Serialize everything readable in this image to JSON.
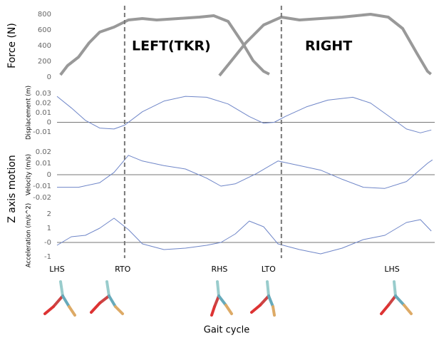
{
  "x_label": "Gait cycle",
  "group_label": "Z axis motion",
  "annotations": [
    "LEFT(TKR)",
    "RIGHT"
  ],
  "dividers": [
    17.9,
    59.4
  ],
  "events": [
    {
      "label": "LHS",
      "x": 0
    },
    {
      "label": "RTO",
      "x": 17.4
    },
    {
      "label": "RHS",
      "x": 43
    },
    {
      "label": "LTO",
      "x": 56
    },
    {
      "label": "LHS",
      "x": 88.7
    }
  ],
  "chart_data": [
    {
      "type": "line",
      "ylabel": "Force (N)",
      "ylim": [
        0,
        800
      ],
      "yticks": [
        0,
        200,
        400,
        600,
        800
      ],
      "xlim": [
        0,
        100
      ],
      "series": [
        {
          "color": "#999999",
          "x": [
            0.9,
            2.8,
            5.7,
            8.5,
            11.3,
            15.1,
            18.9,
            22.6,
            26.4,
            32.1,
            37.7,
            41.5,
            45.3,
            49.1,
            51.9,
            54.7,
            56.2
          ],
          "values": [
            27,
            145,
            255,
            436,
            573,
            636,
            727,
            745,
            727,
            745,
            764,
            782,
            709,
            436,
            209,
            73,
            36
          ]
        },
        {
          "color": "#999999",
          "x": [
            43,
            46.2,
            50,
            54.7,
            59.4,
            64.2,
            69.8,
            75.5,
            83,
            87.7,
            91.5,
            95.3,
            98.1,
            99
          ],
          "values": [
            18,
            209,
            436,
            664,
            764,
            727,
            745,
            764,
            800,
            764,
            618,
            300,
            73,
            36
          ]
        }
      ]
    },
    {
      "type": "line",
      "ylabel": "Displacement (m)",
      "ylim": [
        -0.012,
        0.032
      ],
      "yticks": [
        0.03,
        0.02,
        0.01,
        0,
        -0.01
      ],
      "xlim": [
        0,
        100
      ],
      "series": [
        {
          "color": "#6f86c8",
          "x": [
            0,
            3.8,
            7.5,
            11.3,
            15.1,
            17.9,
            22.6,
            28.3,
            34,
            39.6,
            45.3,
            50.9,
            54.7,
            57.5,
            60.4,
            66,
            71.7,
            78.3,
            83,
            88.7,
            92.5,
            96.2,
            99.1
          ],
          "values": [
            0.027,
            0.015,
            0.002,
            -0.006,
            -0.007,
            -0.003,
            0.011,
            0.022,
            0.027,
            0.026,
            0.019,
            0.006,
            -0.001,
            0,
            0.006,
            0.016,
            0.023,
            0.026,
            0.02,
            0.004,
            -0.007,
            -0.011,
            -0.008
          ]
        }
      ]
    },
    {
      "type": "line",
      "ylabel": "Velocity (m/s)",
      "ylim": [
        -0.02,
        0.02
      ],
      "yticks": [
        0.02,
        0.01,
        0,
        -0.01,
        -0.02
      ],
      "xlim": [
        0,
        100
      ],
      "series": [
        {
          "color": "#6f86c8",
          "x": [
            0,
            5.7,
            11.3,
            15.1,
            18.9,
            22.6,
            28.3,
            34,
            39.6,
            43.4,
            47.2,
            52.8,
            58.5,
            64.2,
            69.8,
            75.5,
            81.1,
            86.8,
            92.5,
            98.1,
            99.4
          ],
          "values": [
            -0.011,
            -0.011,
            -0.007,
            0.002,
            0.017,
            0.012,
            0.008,
            0.005,
            -0.003,
            -0.01,
            -0.008,
            0.001,
            0.012,
            0.008,
            0.004,
            -0.004,
            -0.011,
            -0.012,
            -0.006,
            0.01,
            0.013
          ]
        }
      ]
    },
    {
      "type": "line",
      "ylabel": "Acceleration (m/s^2)",
      "ylim": [
        -1,
        2
      ],
      "yticks": [
        2,
        1,
        {
          "value": 0,
          "label": "-0"
        },
        -1
      ],
      "xlim": [
        0,
        100
      ],
      "series": [
        {
          "color": "#6f86c8",
          "x": [
            0,
            3.8,
            7.5,
            11.3,
            15.1,
            18.9,
            22.6,
            28.3,
            34,
            39.6,
            43.4,
            47.2,
            50.9,
            54.7,
            58.5,
            64.2,
            69.8,
            75.5,
            81.1,
            86.8,
            92.5,
            96.2,
            99.1
          ],
          "values": [
            -0.2,
            0.4,
            0.5,
            1,
            1.7,
            0.9,
            -0.1,
            -0.5,
            -0.4,
            -0.2,
            0,
            0.6,
            1.5,
            1.1,
            -0.1,
            -0.5,
            -0.8,
            -0.4,
            0.2,
            0.5,
            1.4,
            1.6,
            0.8
          ]
        }
      ]
    }
  ]
}
